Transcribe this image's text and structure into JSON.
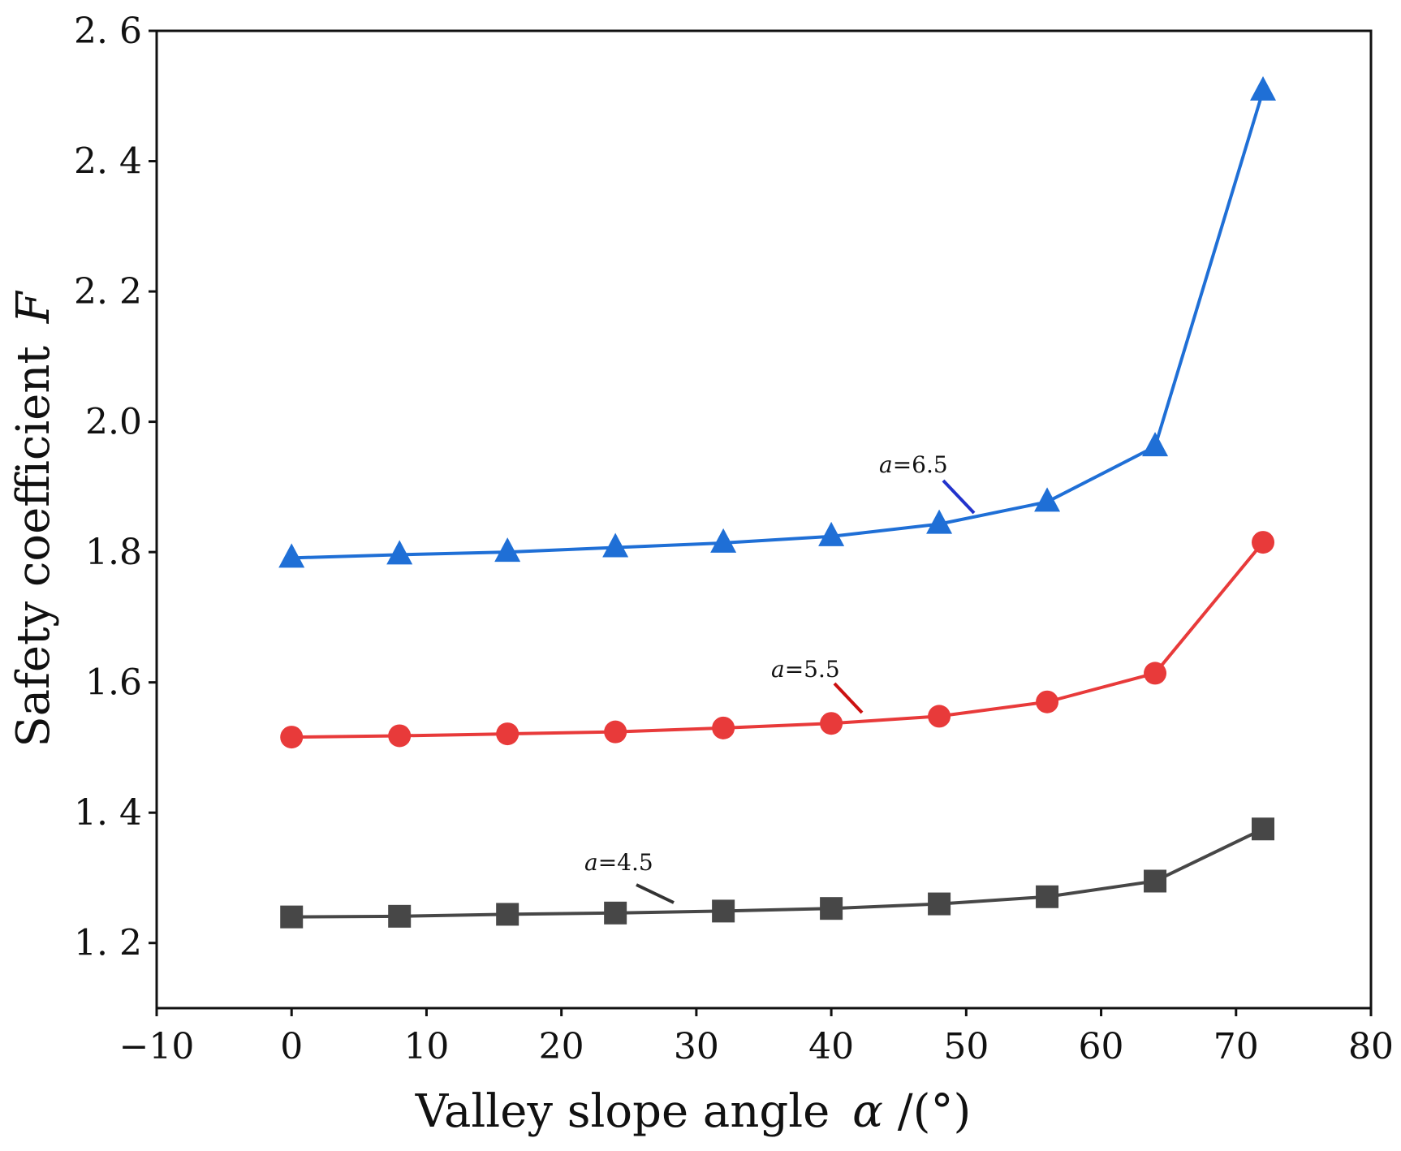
{
  "chart_data": {
    "type": "line",
    "title": "",
    "xlabel": "Valley slope angle",
    "xlabel_symbol": "α",
    "xlabel_unit": " /(°)",
    "ylabel": "Safety coefficient",
    "ylabel_symbol": "F",
    "xlim": [
      -10,
      80
    ],
    "ylim": [
      1.1,
      2.6
    ],
    "xticks": [
      -10,
      0,
      10,
      20,
      30,
      40,
      50,
      60,
      70,
      80
    ],
    "xtick_labels": [
      "−10",
      "0",
      "10",
      "20",
      "30",
      "40",
      "50",
      "60",
      "70",
      "80"
    ],
    "yticks": [
      1.2,
      1.4,
      1.6,
      1.8,
      2.0,
      2.2,
      2.4,
      2.6
    ],
    "ytick_labels": [
      "1. 2",
      "1. 4",
      "1.6",
      "1.8",
      "2.0",
      "2. 2",
      "2. 4",
      "2. 6"
    ],
    "grid": false,
    "legend": "none",
    "x": [
      0,
      8,
      16,
      24,
      32,
      40,
      48,
      56,
      64,
      72
    ],
    "series": [
      {
        "label_text": "a=4.5",
        "label_symbol": "a",
        "label_value": "=4.5",
        "color": "#474747",
        "marker": "square",
        "values": [
          1.24,
          1.241,
          1.244,
          1.246,
          1.249,
          1.253,
          1.26,
          1.271,
          1.295,
          1.375
        ]
      },
      {
        "label_text": "a=5.5",
        "label_symbol": "a",
        "label_value": "=5.5",
        "color": "#e83a3a",
        "marker": "circle",
        "values": [
          1.516,
          1.518,
          1.521,
          1.524,
          1.53,
          1.537,
          1.548,
          1.57,
          1.614,
          1.815
        ]
      },
      {
        "label_text": "a=6.5",
        "label_symbol": "a",
        "label_value": "=6.5",
        "color": "#1f6fd6",
        "marker": "triangle",
        "values": [
          1.791,
          1.796,
          1.8,
          1.807,
          1.814,
          1.824,
          1.843,
          1.877,
          1.962,
          2.508
        ]
      }
    ]
  }
}
